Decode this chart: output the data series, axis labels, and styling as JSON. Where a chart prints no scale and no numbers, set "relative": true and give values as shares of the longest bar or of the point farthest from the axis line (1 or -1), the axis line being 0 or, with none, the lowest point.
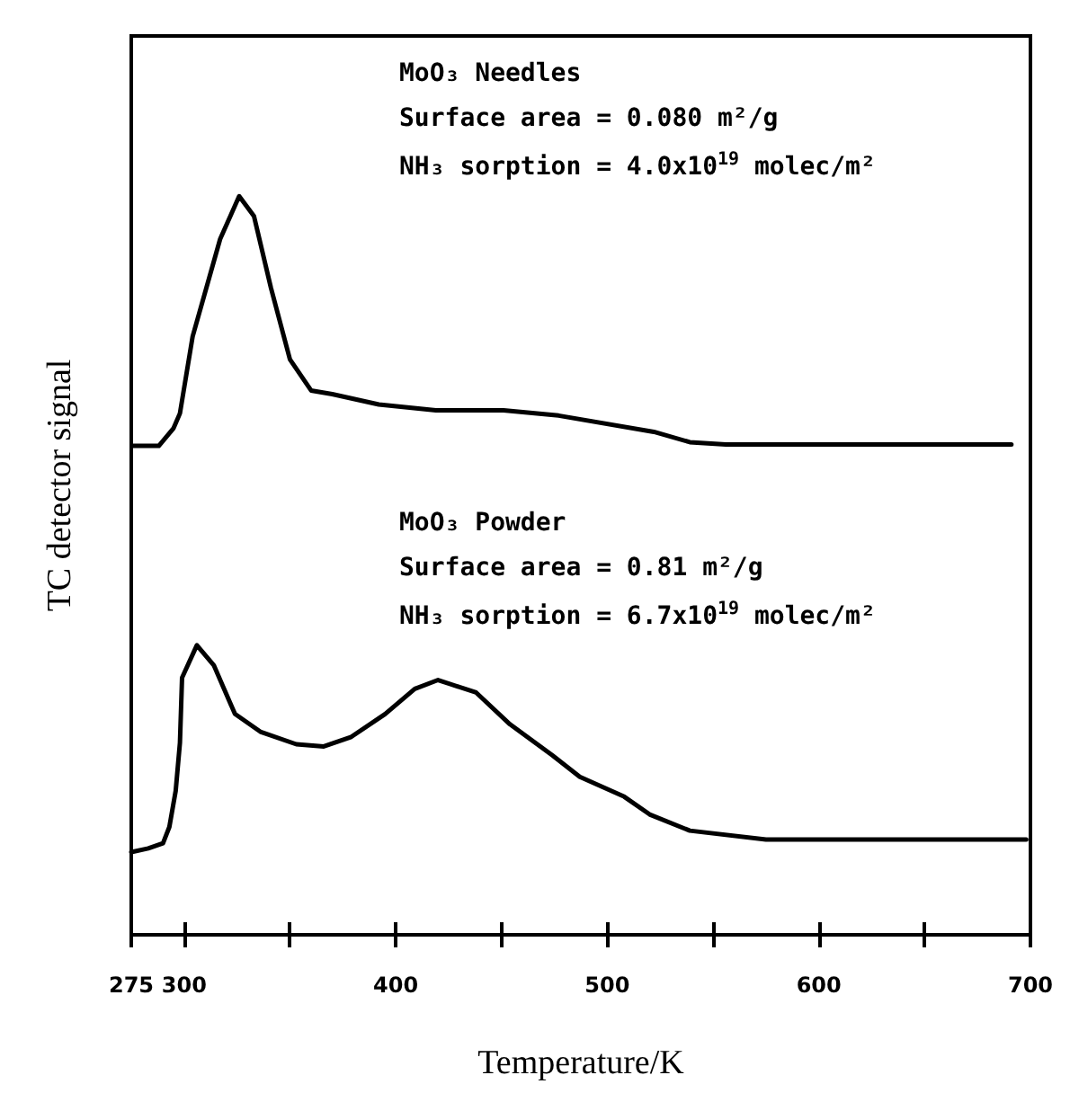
{
  "chart_data": {
    "type": "line",
    "relative": true,
    "xlabel": "Temperature/K",
    "ylabel": "TC detector signal",
    "xlim": [
      275,
      700
    ],
    "xticks": [
      275,
      300,
      {
        "value": 350,
        "label": null
      },
      400,
      {
        "value": 450,
        "label": null
      },
      500,
      {
        "value": 550,
        "label": null
      },
      600,
      {
        "value": 650,
        "label": null
      },
      700
    ],
    "tick_labels": "x",
    "annotations": [
      "MoO₃ Needles",
      "Surface area = 0.080 m²/g",
      "NH₃ sorption = 4.0x10$^{19}$ molec/m²",
      "MoO₃ Powder",
      "Surface area = 0.81 m²/g",
      "NH₃ sorption = 6.7x10$^{19}$ molec/m²"
    ],
    "series": [
      {
        "color": "#000000",
        "x": [
          276,
          288,
          295,
          298,
          304,
          317,
          326,
          333,
          341,
          350,
          360,
          370,
          392,
          419,
          451,
          477,
          522,
          539,
          556,
          691
        ],
        "values": [
          0.662,
          0.662,
          0.686,
          0.706,
          0.81,
          0.942,
          1.0,
          0.973,
          0.876,
          0.779,
          0.737,
          0.732,
          0.718,
          0.71,
          0.71,
          0.703,
          0.681,
          0.667,
          0.664,
          0.664
        ]
      },
      {
        "color": "#000000",
        "x": [
          275,
          283,
          290,
          293,
          296,
          298,
          299,
          306,
          314,
          324,
          336,
          353,
          366,
          379,
          395,
          409,
          420,
          438,
          454,
          474,
          487,
          508,
          520,
          539,
          575,
          698
        ],
        "values": [
          0.112,
          0.117,
          0.124,
          0.146,
          0.195,
          0.26,
          0.348,
          0.392,
          0.365,
          0.299,
          0.275,
          0.258,
          0.255,
          0.268,
          0.299,
          0.333,
          0.345,
          0.328,
          0.285,
          0.243,
          0.214,
          0.187,
          0.163,
          0.141,
          0.129,
          0.129
        ]
      }
    ]
  }
}
